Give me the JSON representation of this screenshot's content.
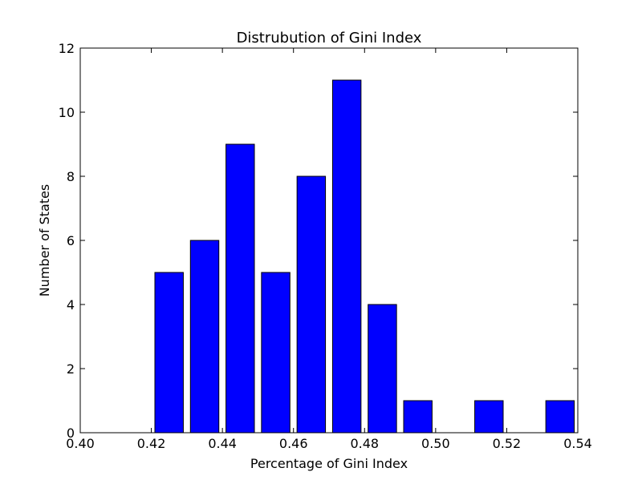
{
  "chart_data": {
    "type": "bar",
    "title": "Distrubution of Gini Index",
    "xlabel": "Percentage of Gini Index",
    "ylabel": "Number of States",
    "xlim": [
      0.4,
      0.54
    ],
    "ylim": [
      0,
      12
    ],
    "xticks": [
      "0.40",
      "0.42",
      "0.44",
      "0.46",
      "0.48",
      "0.50",
      "0.52",
      "0.54"
    ],
    "yticks": [
      "0",
      "2",
      "4",
      "6",
      "8",
      "10",
      "12"
    ],
    "bin_width": 0.01,
    "bar_width": 0.008,
    "bins": [
      {
        "x": 0.42,
        "value": 5
      },
      {
        "x": 0.43,
        "value": 6
      },
      {
        "x": 0.44,
        "value": 9
      },
      {
        "x": 0.45,
        "value": 5
      },
      {
        "x": 0.46,
        "value": 8
      },
      {
        "x": 0.47,
        "value": 11
      },
      {
        "x": 0.48,
        "value": 4
      },
      {
        "x": 0.49,
        "value": 1
      },
      {
        "x": 0.5,
        "value": 0
      },
      {
        "x": 0.51,
        "value": 1
      },
      {
        "x": 0.52,
        "value": 0
      },
      {
        "x": 0.53,
        "value": 1
      }
    ],
    "bar_color": "#0000ff",
    "edge_color": "#000000",
    "grid": false,
    "legend": "none"
  }
}
